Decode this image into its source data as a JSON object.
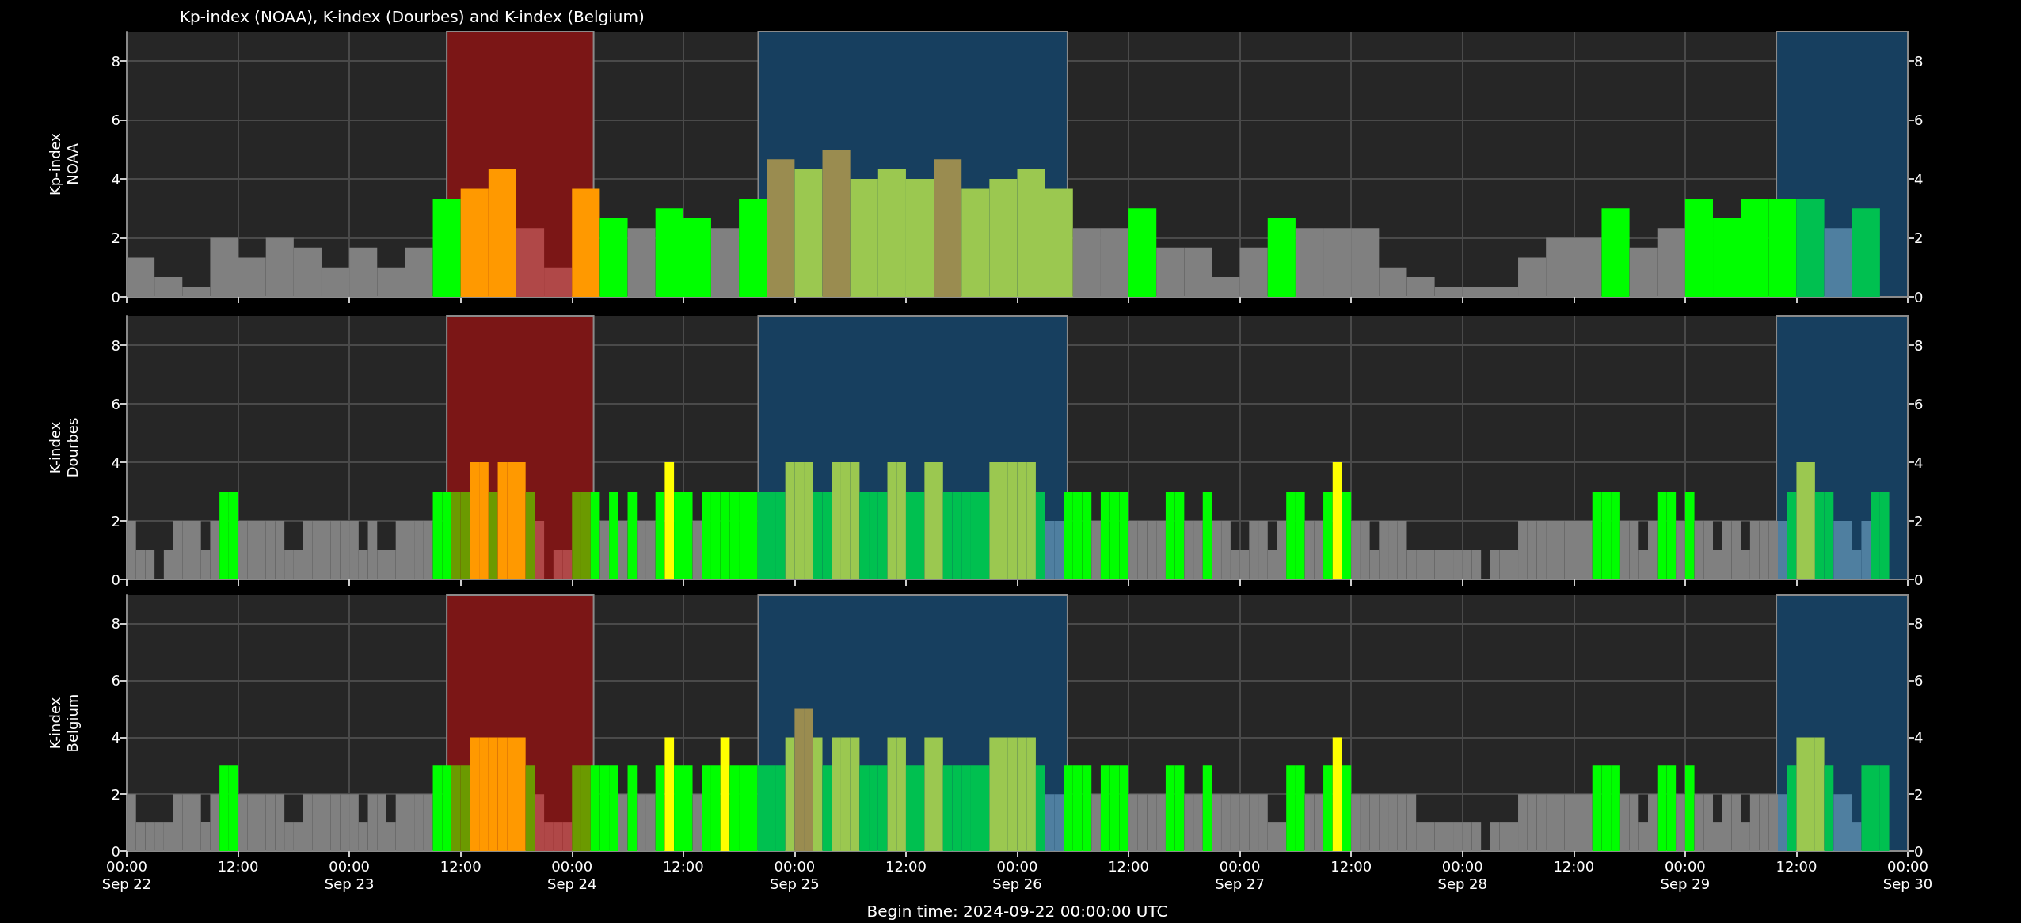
{
  "chart_data": [
    {
      "type": "bar",
      "title": "Kp-index (NOAA), K-index (Dourbes) and K-index (Belgium)",
      "ylabel": "Kp-index\nNOAA",
      "x": [
        "2024-09-22T01:30",
        "2024-09-22T04:30",
        "2024-09-22T07:30",
        "2024-09-22T10:30",
        "2024-09-22T13:30",
        "2024-09-22T16:30",
        "2024-09-22T19:30",
        "2024-09-22T22:30",
        "2024-09-23T01:30",
        "2024-09-23T04:30",
        "2024-09-23T07:30",
        "2024-09-23T10:30",
        "2024-09-23T13:30",
        "2024-09-23T16:30",
        "2024-09-23T19:30",
        "2024-09-23T22:30",
        "2024-09-24T01:30",
        "2024-09-24T04:30",
        "2024-09-24T07:30",
        "2024-09-24T10:30",
        "2024-09-24T13:30",
        "2024-09-24T16:30",
        "2024-09-24T19:30",
        "2024-09-24T22:30",
        "2024-09-25T01:30",
        "2024-09-25T04:30",
        "2024-09-25T07:30",
        "2024-09-25T10:30",
        "2024-09-25T13:30",
        "2024-09-25T16:30",
        "2024-09-25T19:30",
        "2024-09-25T22:30",
        "2024-09-26T01:30",
        "2024-09-26T04:30",
        "2024-09-26T07:30",
        "2024-09-26T10:30",
        "2024-09-26T13:30",
        "2024-09-26T16:30",
        "2024-09-26T19:30",
        "2024-09-26T22:30",
        "2024-09-27T01:30",
        "2024-09-27T04:30",
        "2024-09-27T07:30",
        "2024-09-27T10:30",
        "2024-09-27T13:30",
        "2024-09-27T16:30",
        "2024-09-27T19:30",
        "2024-09-27T22:30",
        "2024-09-28T01:30",
        "2024-09-28T04:30",
        "2024-09-28T07:30",
        "2024-09-28T10:30",
        "2024-09-28T13:30",
        "2024-09-28T16:30",
        "2024-09-28T19:30",
        "2024-09-28T22:30",
        "2024-09-29T01:30",
        "2024-09-29T04:30",
        "2024-09-29T07:30",
        "2024-09-29T10:30",
        "2024-09-29T13:30",
        "2024-09-29T16:30",
        "2024-09-29T19:30"
      ],
      "values": [
        1.33,
        0.67,
        0.33,
        2,
        1.33,
        2,
        1.67,
        1,
        1.67,
        1,
        1.67,
        3.33,
        3.67,
        4.33,
        2.33,
        1,
        3.67,
        2.67,
        2.33,
        3,
        2.67,
        2.33,
        3.33,
        4.67,
        4.33,
        5,
        4,
        4.33,
        4,
        4.67,
        3.67,
        4,
        4.33,
        3.67,
        2.33,
        2.33,
        3,
        1.67,
        1.67,
        0.67,
        1.67,
        2.67,
        2.33,
        2.33,
        2.33,
        1,
        0.67,
        0.33,
        0.33,
        0.33,
        1.33,
        2,
        2,
        3,
        1.67,
        2.33,
        3.33,
        2.67,
        3.33,
        3.33,
        3.33,
        2.33,
        3
      ],
      "colors": [
        "#808080",
        "#808080",
        "#808080",
        "#808080",
        "#808080",
        "#808080",
        "#808080",
        "#808080",
        "#808080",
        "#808080",
        "#808080",
        "#00ff00",
        "#ff9900",
        "#ff9900",
        "#b04848",
        "#b04848",
        "#ff9900",
        "#00ff00",
        "#808080",
        "#00ff00",
        "#00ff00",
        "#808080",
        "#00ff00",
        "#9a8c50",
        "#9bc850",
        "#9a8c50",
        "#9bc850",
        "#9bc850",
        "#9bc850",
        "#9a8c50",
        "#9bc850",
        "#9bc850",
        "#9bc850",
        "#9bc850",
        "#808080",
        "#808080",
        "#00ff00",
        "#808080",
        "#808080",
        "#808080",
        "#808080",
        "#00ff00",
        "#808080",
        "#808080",
        "#808080",
        "#808080",
        "#808080",
        "#808080",
        "#808080",
        "#808080",
        "#808080",
        "#808080",
        "#808080",
        "#00ff00",
        "#808080",
        "#808080",
        "#00ff00",
        "#00ff00",
        "#00ff00",
        "#00ff00",
        "#00c050",
        "#4f7fa0",
        "#00c050"
      ],
      "xlim": [
        "2024-09-22T00:00",
        "2024-09-30T00:00"
      ],
      "xticks": [
        {
          "value": "2024-09-22T00:00",
          "label": null
        },
        {
          "value": "2024-09-22T12:00",
          "label": null
        },
        {
          "value": "2024-09-23T00:00",
          "label": null
        },
        {
          "value": "2024-09-23T12:00",
          "label": null
        },
        {
          "value": "2024-09-24T00:00",
          "label": null
        },
        {
          "value": "2024-09-24T12:00",
          "label": null
        },
        {
          "value": "2024-09-25T00:00",
          "label": null
        },
        {
          "value": "2024-09-25T12:00",
          "label": null
        },
        {
          "value": "2024-09-26T00:00",
          "label": null
        },
        {
          "value": "2024-09-26T12:00",
          "label": null
        },
        {
          "value": "2024-09-27T00:00",
          "label": null
        },
        {
          "value": "2024-09-27T12:00",
          "label": null
        },
        {
          "value": "2024-09-28T00:00",
          "label": null
        },
        {
          "value": "2024-09-28T12:00",
          "label": null
        },
        {
          "value": "2024-09-29T00:00",
          "label": null
        },
        {
          "value": "2024-09-29T12:00",
          "label": null
        },
        {
          "value": "2024-09-30T00:00",
          "label": null
        }
      ],
      "ylim": [
        0,
        9
      ],
      "yticks": [
        0,
        2,
        4,
        6,
        8
      ],
      "y2lim": [
        0,
        9
      ],
      "y2ticks": [
        0,
        2,
        4,
        6,
        8
      ],
      "bands": [
        {
          "axis": "x",
          "from": "2024-09-23T10:30",
          "to": "2024-09-24T02:20",
          "color": "#7b1616"
        },
        {
          "axis": "x",
          "from": "2024-09-24T20:05",
          "to": "2024-09-26T05:25",
          "color": "#173f5f"
        },
        {
          "axis": "x",
          "from": "2024-09-29T09:50",
          "to": "2024-09-30T00:00",
          "color": "#173f5f"
        }
      ],
      "grid": true,
      "tick_labels": "y"
    },
    {
      "type": "bar",
      "ylabel": "K-index\nDourbes",
      "x": [
        "2024-09-22T00:30",
        "2024-09-22T01:30",
        "2024-09-22T02:30",
        "2024-09-22T03:30",
        "2024-09-22T04:30",
        "2024-09-22T05:30",
        "2024-09-22T06:30",
        "2024-09-22T07:30",
        "2024-09-22T08:30",
        "2024-09-22T09:30",
        "2024-09-22T10:30",
        "2024-09-22T11:30",
        "2024-09-22T12:30",
        "2024-09-22T13:30",
        "2024-09-22T14:30",
        "2024-09-22T15:30",
        "2024-09-22T16:30",
        "2024-09-22T17:30",
        "2024-09-22T18:30",
        "2024-09-22T19:30",
        "2024-09-22T20:30",
        "2024-09-22T21:30",
        "2024-09-22T22:30",
        "2024-09-22T23:30",
        "2024-09-23T00:30",
        "2024-09-23T01:30",
        "2024-09-23T02:30",
        "2024-09-23T03:30",
        "2024-09-23T04:30",
        "2024-09-23T05:30",
        "2024-09-23T06:30",
        "2024-09-23T07:30",
        "2024-09-23T08:30",
        "2024-09-23T09:30",
        "2024-09-23T10:30",
        "2024-09-23T11:30",
        "2024-09-23T12:30",
        "2024-09-23T13:30",
        "2024-09-23T14:30",
        "2024-09-23T15:30",
        "2024-09-23T16:30",
        "2024-09-23T17:30",
        "2024-09-23T18:30",
        "2024-09-23T19:30",
        "2024-09-23T20:30",
        "2024-09-23T21:30",
        "2024-09-23T22:30",
        "2024-09-23T23:30",
        "2024-09-24T00:30",
        "2024-09-24T01:30",
        "2024-09-24T02:30",
        "2024-09-24T03:30",
        "2024-09-24T04:30",
        "2024-09-24T05:30",
        "2024-09-24T06:30",
        "2024-09-24T07:30",
        "2024-09-24T08:30",
        "2024-09-24T09:30",
        "2024-09-24T10:30",
        "2024-09-24T11:30",
        "2024-09-24T12:30",
        "2024-09-24T13:30",
        "2024-09-24T14:30",
        "2024-09-24T15:30",
        "2024-09-24T16:30",
        "2024-09-24T17:30",
        "2024-09-24T18:30",
        "2024-09-24T19:30",
        "2024-09-24T20:30",
        "2024-09-24T21:30",
        "2024-09-24T22:30",
        "2024-09-24T23:30",
        "2024-09-25T00:30",
        "2024-09-25T01:30",
        "2024-09-25T02:30",
        "2024-09-25T03:30",
        "2024-09-25T04:30",
        "2024-09-25T05:30",
        "2024-09-25T06:30",
        "2024-09-25T07:30",
        "2024-09-25T08:30",
        "2024-09-25T09:30",
        "2024-09-25T10:30",
        "2024-09-25T11:30",
        "2024-09-25T12:30",
        "2024-09-25T13:30",
        "2024-09-25T14:30",
        "2024-09-25T15:30",
        "2024-09-25T16:30",
        "2024-09-25T17:30",
        "2024-09-25T18:30",
        "2024-09-25T19:30",
        "2024-09-25T20:30",
        "2024-09-25T21:30",
        "2024-09-25T22:30",
        "2024-09-25T23:30",
        "2024-09-26T00:30",
        "2024-09-26T01:30",
        "2024-09-26T02:30",
        "2024-09-26T03:30",
        "2024-09-26T04:30",
        "2024-09-26T05:30",
        "2024-09-26T06:30",
        "2024-09-26T07:30",
        "2024-09-26T08:30",
        "2024-09-26T09:30",
        "2024-09-26T10:30",
        "2024-09-26T11:30",
        "2024-09-26T12:30",
        "2024-09-26T13:30",
        "2024-09-26T14:30",
        "2024-09-26T15:30",
        "2024-09-26T16:30",
        "2024-09-26T17:30",
        "2024-09-26T18:30",
        "2024-09-26T19:30",
        "2024-09-26T20:30",
        "2024-09-26T21:30",
        "2024-09-26T22:30",
        "2024-09-26T23:30",
        "2024-09-27T00:30",
        "2024-09-27T01:30",
        "2024-09-27T02:30",
        "2024-09-27T03:30",
        "2024-09-27T04:30",
        "2024-09-27T05:30",
        "2024-09-27T06:30",
        "2024-09-27T07:30",
        "2024-09-27T08:30",
        "2024-09-27T09:30",
        "2024-09-27T10:30",
        "2024-09-27T11:30",
        "2024-09-27T12:30",
        "2024-09-27T13:30",
        "2024-09-27T14:30",
        "2024-09-27T15:30",
        "2024-09-27T16:30",
        "2024-09-27T17:30",
        "2024-09-27T18:30",
        "2024-09-27T19:30",
        "2024-09-27T20:30",
        "2024-09-27T21:30",
        "2024-09-27T22:30",
        "2024-09-27T23:30",
        "2024-09-28T00:30",
        "2024-09-28T01:30",
        "2024-09-28T02:30",
        "2024-09-28T03:30",
        "2024-09-28T04:30",
        "2024-09-28T05:30",
        "2024-09-28T06:30",
        "2024-09-28T07:30",
        "2024-09-28T08:30",
        "2024-09-28T09:30",
        "2024-09-28T10:30",
        "2024-09-28T11:30",
        "2024-09-28T12:30",
        "2024-09-28T13:30",
        "2024-09-28T14:30",
        "2024-09-28T15:30",
        "2024-09-28T16:30",
        "2024-09-28T17:30",
        "2024-09-28T18:30",
        "2024-09-28T19:30",
        "2024-09-28T20:30",
        "2024-09-28T21:30",
        "2024-09-28T22:30",
        "2024-09-28T23:30",
        "2024-09-29T00:30",
        "2024-09-29T01:30",
        "2024-09-29T02:30",
        "2024-09-29T03:30",
        "2024-09-29T04:30",
        "2024-09-29T05:30",
        "2024-09-29T06:30",
        "2024-09-29T07:30",
        "2024-09-29T08:30",
        "2024-09-29T09:30",
        "2024-09-29T10:30",
        "2024-09-29T11:30",
        "2024-09-29T12:30",
        "2024-09-29T13:30",
        "2024-09-29T14:30",
        "2024-09-29T15:30",
        "2024-09-29T16:30",
        "2024-09-29T17:30",
        "2024-09-29T18:30",
        "2024-09-29T19:30",
        "2024-09-29T20:30",
        "2024-09-29T21:30"
      ],
      "values": [
        2,
        1,
        1,
        0,
        1,
        2,
        2,
        2,
        1,
        2,
        3,
        3,
        2,
        2,
        2,
        2,
        2,
        1,
        1,
        2,
        2,
        2,
        2,
        2,
        2,
        1,
        2,
        1,
        1,
        2,
        2,
        2,
        2,
        3,
        3,
        3,
        3,
        4,
        4,
        3,
        4,
        4,
        4,
        3,
        2,
        0,
        1,
        1,
        3,
        3,
        3,
        2,
        3,
        2,
        3,
        2,
        2,
        3,
        4,
        3,
        3,
        2,
        3,
        3,
        3,
        3,
        3,
        3,
        3,
        3,
        3,
        4,
        4,
        4,
        3,
        3,
        4,
        4,
        4,
        3,
        3,
        3,
        4,
        4,
        3,
        3,
        4,
        4,
        3,
        3,
        3,
        3,
        3,
        4,
        4,
        4,
        4,
        4,
        3,
        2,
        2,
        3,
        3,
        3,
        2,
        3,
        3,
        3,
        2,
        2,
        2,
        2,
        3,
        3,
        2,
        2,
        3,
        2,
        2,
        1,
        1,
        2,
        2,
        1,
        2,
        3,
        3,
        2,
        2,
        3,
        4,
        3,
        2,
        2,
        1,
        2,
        2,
        2,
        1,
        1,
        1,
        1,
        1,
        1,
        1,
        1,
        0,
        1,
        1,
        1,
        2,
        2,
        2,
        2,
        2,
        2,
        2,
        2,
        3,
        3,
        3,
        2,
        2,
        1,
        2,
        3,
        3,
        2,
        3,
        2,
        2,
        1,
        2,
        2,
        1,
        2,
        2,
        2,
        2,
        3,
        4,
        4,
        3,
        3,
        2,
        2,
        1,
        2,
        3,
        3
      ],
      "colors": [
        "#808080",
        "#808080",
        "#808080",
        "#808080",
        "#808080",
        "#808080",
        "#808080",
        "#808080",
        "#808080",
        "#808080",
        "#00ff00",
        "#00ff00",
        "#808080",
        "#808080",
        "#808080",
        "#808080",
        "#808080",
        "#808080",
        "#808080",
        "#808080",
        "#808080",
        "#808080",
        "#808080",
        "#808080",
        "#808080",
        "#808080",
        "#808080",
        "#808080",
        "#808080",
        "#808080",
        "#808080",
        "#808080",
        "#808080",
        "#00ff00",
        "#00ff00",
        "#6b9a00",
        "#6b9a00",
        "#ff9900",
        "#ff9900",
        "#6b9a00",
        "#ff9900",
        "#ff9900",
        "#ff9900",
        "#6b9a00",
        "#b04848",
        "#b04848",
        "#b04848",
        "#b04848",
        "#6b9a00",
        "#6b9a00",
        "#00ff00",
        "#808080",
        "#00ff00",
        "#808080",
        "#00ff00",
        "#808080",
        "#808080",
        "#00ff00",
        "#ffff00",
        "#00ff00",
        "#00ff00",
        "#808080",
        "#00ff00",
        "#00ff00",
        "#00ff00",
        "#00ff00",
        "#00ff00",
        "#00ff00",
        "#00c050",
        "#00c050",
        "#00c050",
        "#9bc850",
        "#9bc850",
        "#9bc850",
        "#00c050",
        "#00c050",
        "#9bc850",
        "#9bc850",
        "#9bc850",
        "#00c050",
        "#00c050",
        "#00c050",
        "#9bc850",
        "#9bc850",
        "#00c050",
        "#00c050",
        "#9bc850",
        "#9bc850",
        "#00c050",
        "#00c050",
        "#00c050",
        "#00c050",
        "#00c050",
        "#9bc850",
        "#9bc850",
        "#9bc850",
        "#9bc850",
        "#9bc850",
        "#00c050",
        "#4f7fa0",
        "#4f7fa0",
        "#00ff00",
        "#00ff00",
        "#00ff00",
        "#808080",
        "#00ff00",
        "#00ff00",
        "#00ff00",
        "#808080",
        "#808080",
        "#808080",
        "#808080",
        "#00ff00",
        "#00ff00",
        "#808080",
        "#808080",
        "#00ff00",
        "#808080",
        "#808080",
        "#808080",
        "#808080",
        "#808080",
        "#808080",
        "#808080",
        "#808080",
        "#00ff00",
        "#00ff00",
        "#808080",
        "#808080",
        "#00ff00",
        "#ffff00",
        "#00ff00",
        "#808080",
        "#808080",
        "#808080",
        "#808080",
        "#808080",
        "#808080",
        "#808080",
        "#808080",
        "#808080",
        "#808080",
        "#808080",
        "#808080",
        "#808080",
        "#808080",
        "#808080",
        "#808080",
        "#808080",
        "#808080",
        "#808080",
        "#808080",
        "#808080",
        "#808080",
        "#808080",
        "#808080",
        "#808080",
        "#808080",
        "#00ff00",
        "#00ff00",
        "#00ff00",
        "#808080",
        "#808080",
        "#808080",
        "#808080",
        "#00ff00",
        "#00ff00",
        "#808080",
        "#00ff00",
        "#808080",
        "#808080",
        "#808080",
        "#808080",
        "#808080",
        "#808080",
        "#808080",
        "#808080",
        "#808080",
        "#4f7fa0",
        "#00c050",
        "#9bc850",
        "#9bc850",
        "#00c050",
        "#00c050",
        "#4f7fa0",
        "#4f7fa0",
        "#4f7fa0",
        "#4f7fa0",
        "#00c050",
        "#00c050"
      ],
      "xlim": [
        "2024-09-22T00:00",
        "2024-09-30T00:00"
      ],
      "xticks": [
        {
          "value": "2024-09-22T00:00",
          "label": null
        },
        {
          "value": "2024-09-22T12:00",
          "label": null
        },
        {
          "value": "2024-09-23T00:00",
          "label": null
        },
        {
          "value": "2024-09-23T12:00",
          "label": null
        },
        {
          "value": "2024-09-24T00:00",
          "label": null
        },
        {
          "value": "2024-09-24T12:00",
          "label": null
        },
        {
          "value": "2024-09-25T00:00",
          "label": null
        },
        {
          "value": "2024-09-25T12:00",
          "label": null
        },
        {
          "value": "2024-09-26T00:00",
          "label": null
        },
        {
          "value": "2024-09-26T12:00",
          "label": null
        },
        {
          "value": "2024-09-27T00:00",
          "label": null
        },
        {
          "value": "2024-09-27T12:00",
          "label": null
        },
        {
          "value": "2024-09-28T00:00",
          "label": null
        },
        {
          "value": "2024-09-28T12:00",
          "label": null
        },
        {
          "value": "2024-09-29T00:00",
          "label": null
        },
        {
          "value": "2024-09-29T12:00",
          "label": null
        },
        {
          "value": "2024-09-30T00:00",
          "label": null
        }
      ],
      "ylim": [
        0,
        9
      ],
      "yticks": [
        0,
        2,
        4,
        6,
        8
      ],
      "y2lim": [
        0,
        9
      ],
      "y2ticks": [
        0,
        2,
        4,
        6,
        8
      ],
      "bands": [
        {
          "axis": "x",
          "from": "2024-09-23T10:30",
          "to": "2024-09-24T02:20",
          "color": "#7b1616"
        },
        {
          "axis": "x",
          "from": "2024-09-24T20:05",
          "to": "2024-09-26T05:25",
          "color": "#173f5f"
        },
        {
          "axis": "x",
          "from": "2024-09-29T09:50",
          "to": "2024-09-30T00:00",
          "color": "#173f5f"
        }
      ],
      "grid": true,
      "tick_labels": "y"
    },
    {
      "type": "bar",
      "ylabel": "K-index\nBelgium",
      "xlabel": "Begin time: 2024-09-22 00:00:00 UTC",
      "x": [
        "2024-09-22T00:30",
        "2024-09-22T01:30",
        "2024-09-22T02:30",
        "2024-09-22T03:30",
        "2024-09-22T04:30",
        "2024-09-22T05:30",
        "2024-09-22T06:30",
        "2024-09-22T07:30",
        "2024-09-22T08:30",
        "2024-09-22T09:30",
        "2024-09-22T10:30",
        "2024-09-22T11:30",
        "2024-09-22T12:30",
        "2024-09-22T13:30",
        "2024-09-22T14:30",
        "2024-09-22T15:30",
        "2024-09-22T16:30",
        "2024-09-22T17:30",
        "2024-09-22T18:30",
        "2024-09-22T19:30",
        "2024-09-22T20:30",
        "2024-09-22T21:30",
        "2024-09-22T22:30",
        "2024-09-22T23:30",
        "2024-09-23T00:30",
        "2024-09-23T01:30",
        "2024-09-23T02:30",
        "2024-09-23T03:30",
        "2024-09-23T04:30",
        "2024-09-23T05:30",
        "2024-09-23T06:30",
        "2024-09-23T07:30",
        "2024-09-23T08:30",
        "2024-09-23T09:30",
        "2024-09-23T10:30",
        "2024-09-23T11:30",
        "2024-09-23T12:30",
        "2024-09-23T13:30",
        "2024-09-23T14:30",
        "2024-09-23T15:30",
        "2024-09-23T16:30",
        "2024-09-23T17:30",
        "2024-09-23T18:30",
        "2024-09-23T19:30",
        "2024-09-23T20:30",
        "2024-09-23T21:30",
        "2024-09-23T22:30",
        "2024-09-23T23:30",
        "2024-09-24T00:30",
        "2024-09-24T01:30",
        "2024-09-24T02:30",
        "2024-09-24T03:30",
        "2024-09-24T04:30",
        "2024-09-24T05:30",
        "2024-09-24T06:30",
        "2024-09-24T07:30",
        "2024-09-24T08:30",
        "2024-09-24T09:30",
        "2024-09-24T10:30",
        "2024-09-24T11:30",
        "2024-09-24T12:30",
        "2024-09-24T13:30",
        "2024-09-24T14:30",
        "2024-09-24T15:30",
        "2024-09-24T16:30",
        "2024-09-24T17:30",
        "2024-09-24T18:30",
        "2024-09-24T19:30",
        "2024-09-24T20:30",
        "2024-09-24T21:30",
        "2024-09-24T22:30",
        "2024-09-24T23:30",
        "2024-09-25T00:30",
        "2024-09-25T01:30",
        "2024-09-25T02:30",
        "2024-09-25T03:30",
        "2024-09-25T04:30",
        "2024-09-25T05:30",
        "2024-09-25T06:30",
        "2024-09-25T07:30",
        "2024-09-25T08:30",
        "2024-09-25T09:30",
        "2024-09-25T10:30",
        "2024-09-25T11:30",
        "2024-09-25T12:30",
        "2024-09-25T13:30",
        "2024-09-25T14:30",
        "2024-09-25T15:30",
        "2024-09-25T16:30",
        "2024-09-25T17:30",
        "2024-09-25T18:30",
        "2024-09-25T19:30",
        "2024-09-25T20:30",
        "2024-09-25T21:30",
        "2024-09-25T22:30",
        "2024-09-25T23:30",
        "2024-09-26T00:30",
        "2024-09-26T01:30",
        "2024-09-26T02:30",
        "2024-09-26T03:30",
        "2024-09-26T04:30",
        "2024-09-26T05:30",
        "2024-09-26T06:30",
        "2024-09-26T07:30",
        "2024-09-26T08:30",
        "2024-09-26T09:30",
        "2024-09-26T10:30",
        "2024-09-26T11:30",
        "2024-09-26T12:30",
        "2024-09-26T13:30",
        "2024-09-26T14:30",
        "2024-09-26T15:30",
        "2024-09-26T16:30",
        "2024-09-26T17:30",
        "2024-09-26T18:30",
        "2024-09-26T19:30",
        "2024-09-26T20:30",
        "2024-09-26T21:30",
        "2024-09-26T22:30",
        "2024-09-26T23:30",
        "2024-09-27T00:30",
        "2024-09-27T01:30",
        "2024-09-27T02:30",
        "2024-09-27T03:30",
        "2024-09-27T04:30",
        "2024-09-27T05:30",
        "2024-09-27T06:30",
        "2024-09-27T07:30",
        "2024-09-27T08:30",
        "2024-09-27T09:30",
        "2024-09-27T10:30",
        "2024-09-27T11:30",
        "2024-09-27T12:30",
        "2024-09-27T13:30",
        "2024-09-27T14:30",
        "2024-09-27T15:30",
        "2024-09-27T16:30",
        "2024-09-27T17:30",
        "2024-09-27T18:30",
        "2024-09-27T19:30",
        "2024-09-27T20:30",
        "2024-09-27T21:30",
        "2024-09-27T22:30",
        "2024-09-27T23:30",
        "2024-09-28T00:30",
        "2024-09-28T01:30",
        "2024-09-28T02:30",
        "2024-09-28T03:30",
        "2024-09-28T04:30",
        "2024-09-28T05:30",
        "2024-09-28T06:30",
        "2024-09-28T07:30",
        "2024-09-28T08:30",
        "2024-09-28T09:30",
        "2024-09-28T10:30",
        "2024-09-28T11:30",
        "2024-09-28T12:30",
        "2024-09-28T13:30",
        "2024-09-28T14:30",
        "2024-09-28T15:30",
        "2024-09-28T16:30",
        "2024-09-28T17:30",
        "2024-09-28T18:30",
        "2024-09-28T19:30",
        "2024-09-28T20:30",
        "2024-09-28T21:30",
        "2024-09-28T22:30",
        "2024-09-28T23:30",
        "2024-09-29T00:30",
        "2024-09-29T01:30",
        "2024-09-29T02:30",
        "2024-09-29T03:30",
        "2024-09-29T04:30",
        "2024-09-29T05:30",
        "2024-09-29T06:30",
        "2024-09-29T07:30",
        "2024-09-29T08:30",
        "2024-09-29T09:30",
        "2024-09-29T10:30",
        "2024-09-29T11:30",
        "2024-09-29T12:30",
        "2024-09-29T13:30",
        "2024-09-29T14:30",
        "2024-09-29T15:30",
        "2024-09-29T16:30",
        "2024-09-29T17:30",
        "2024-09-29T18:30",
        "2024-09-29T19:30",
        "2024-09-29T20:30",
        "2024-09-29T21:30"
      ],
      "values": [
        2,
        1,
        1,
        1,
        1,
        2,
        2,
        2,
        1,
        2,
        3,
        3,
        2,
        2,
        2,
        2,
        2,
        1,
        1,
        2,
        2,
        2,
        2,
        2,
        2,
        1,
        2,
        2,
        1,
        2,
        2,
        2,
        2,
        3,
        3,
        3,
        3,
        4,
        4,
        4,
        4,
        4,
        4,
        3,
        2,
        1,
        1,
        1,
        3,
        3,
        3,
        3,
        3,
        2,
        3,
        2,
        2,
        3,
        4,
        3,
        3,
        2,
        3,
        3,
        4,
        3,
        3,
        3,
        3,
        3,
        3,
        4,
        5,
        5,
        4,
        3,
        4,
        4,
        4,
        3,
        3,
        3,
        4,
        4,
        3,
        3,
        4,
        4,
        3,
        3,
        3,
        3,
        3,
        4,
        4,
        4,
        4,
        4,
        3,
        2,
        2,
        3,
        3,
        3,
        2,
        3,
        3,
        3,
        2,
        2,
        2,
        2,
        3,
        3,
        2,
        2,
        3,
        2,
        2,
        2,
        2,
        2,
        2,
        1,
        1,
        3,
        3,
        2,
        2,
        3,
        4,
        3,
        2,
        2,
        2,
        2,
        2,
        2,
        2,
        1,
        1,
        1,
        1,
        1,
        1,
        1,
        0,
        1,
        1,
        1,
        2,
        2,
        2,
        2,
        2,
        2,
        2,
        2,
        3,
        3,
        3,
        2,
        2,
        1,
        2,
        3,
        3,
        2,
        3,
        2,
        2,
        1,
        2,
        2,
        1,
        2,
        2,
        2,
        2,
        3,
        4,
        4,
        4,
        3,
        2,
        2,
        1,
        3,
        3,
        3
      ],
      "colors": [
        "#808080",
        "#808080",
        "#808080",
        "#808080",
        "#808080",
        "#808080",
        "#808080",
        "#808080",
        "#808080",
        "#808080",
        "#00ff00",
        "#00ff00",
        "#808080",
        "#808080",
        "#808080",
        "#808080",
        "#808080",
        "#808080",
        "#808080",
        "#808080",
        "#808080",
        "#808080",
        "#808080",
        "#808080",
        "#808080",
        "#808080",
        "#808080",
        "#808080",
        "#808080",
        "#808080",
        "#808080",
        "#808080",
        "#808080",
        "#00ff00",
        "#00ff00",
        "#6b9a00",
        "#6b9a00",
        "#ff9900",
        "#ff9900",
        "#ff9900",
        "#ff9900",
        "#ff9900",
        "#ff9900",
        "#6b9a00",
        "#b04848",
        "#b04848",
        "#b04848",
        "#b04848",
        "#6b9a00",
        "#6b9a00",
        "#00ff00",
        "#00ff00",
        "#00ff00",
        "#808080",
        "#00ff00",
        "#808080",
        "#808080",
        "#00ff00",
        "#ffff00",
        "#00ff00",
        "#00ff00",
        "#808080",
        "#00ff00",
        "#00ff00",
        "#ffff00",
        "#00ff00",
        "#00ff00",
        "#00ff00",
        "#00c050",
        "#00c050",
        "#00c050",
        "#9bc850",
        "#9a8c50",
        "#9a8c50",
        "#9bc850",
        "#00c050",
        "#9bc850",
        "#9bc850",
        "#9bc850",
        "#00c050",
        "#00c050",
        "#00c050",
        "#9bc850",
        "#9bc850",
        "#00c050",
        "#00c050",
        "#9bc850",
        "#9bc850",
        "#00c050",
        "#00c050",
        "#00c050",
        "#00c050",
        "#00c050",
        "#9bc850",
        "#9bc850",
        "#9bc850",
        "#9bc850",
        "#9bc850",
        "#00c050",
        "#4f7fa0",
        "#4f7fa0",
        "#00ff00",
        "#00ff00",
        "#00ff00",
        "#808080",
        "#00ff00",
        "#00ff00",
        "#00ff00",
        "#808080",
        "#808080",
        "#808080",
        "#808080",
        "#00ff00",
        "#00ff00",
        "#808080",
        "#808080",
        "#00ff00",
        "#808080",
        "#808080",
        "#808080",
        "#808080",
        "#808080",
        "#808080",
        "#808080",
        "#808080",
        "#00ff00",
        "#00ff00",
        "#808080",
        "#808080",
        "#00ff00",
        "#ffff00",
        "#00ff00",
        "#808080",
        "#808080",
        "#808080",
        "#808080",
        "#808080",
        "#808080",
        "#808080",
        "#808080",
        "#808080",
        "#808080",
        "#808080",
        "#808080",
        "#808080",
        "#808080",
        "#808080",
        "#808080",
        "#808080",
        "#808080",
        "#808080",
        "#808080",
        "#808080",
        "#808080",
        "#808080",
        "#808080",
        "#808080",
        "#808080",
        "#00ff00",
        "#00ff00",
        "#00ff00",
        "#808080",
        "#808080",
        "#808080",
        "#808080",
        "#00ff00",
        "#00ff00",
        "#808080",
        "#00ff00",
        "#808080",
        "#808080",
        "#808080",
        "#808080",
        "#808080",
        "#808080",
        "#808080",
        "#808080",
        "#808080",
        "#4f7fa0",
        "#00c050",
        "#9bc850",
        "#9bc850",
        "#9bc850",
        "#00c050",
        "#4f7fa0",
        "#4f7fa0",
        "#4f7fa0",
        "#00c050",
        "#00c050",
        "#00c050"
      ],
      "xlim": [
        "2024-09-22T00:00",
        "2024-09-30T00:00"
      ],
      "xticks": [
        {
          "value": "2024-09-22T00:00",
          "label": "00:00\nSep 22"
        },
        {
          "value": "2024-09-22T12:00",
          "label": "12:00"
        },
        {
          "value": "2024-09-23T00:00",
          "label": "00:00\nSep 23"
        },
        {
          "value": "2024-09-23T12:00",
          "label": "12:00"
        },
        {
          "value": "2024-09-24T00:00",
          "label": "00:00\nSep 24"
        },
        {
          "value": "2024-09-24T12:00",
          "label": "12:00"
        },
        {
          "value": "2024-09-25T00:00",
          "label": "00:00\nSep 25"
        },
        {
          "value": "2024-09-25T12:00",
          "label": "12:00"
        },
        {
          "value": "2024-09-26T00:00",
          "label": "00:00\nSep 26"
        },
        {
          "value": "2024-09-26T12:00",
          "label": "12:00"
        },
        {
          "value": "2024-09-27T00:00",
          "label": "00:00\nSep 27"
        },
        {
          "value": "2024-09-27T12:00",
          "label": "12:00"
        },
        {
          "value": "2024-09-28T00:00",
          "label": "00:00\nSep 28"
        },
        {
          "value": "2024-09-28T12:00",
          "label": "12:00"
        },
        {
          "value": "2024-09-29T00:00",
          "label": "00:00\nSep 29"
        },
        {
          "value": "2024-09-29T12:00",
          "label": "12:00"
        },
        {
          "value": "2024-09-30T00:00",
          "label": "00:00\nSep 30"
        }
      ],
      "ylim": [
        0,
        9
      ],
      "yticks": [
        0,
        2,
        4,
        6,
        8
      ],
      "y2lim": [
        0,
        9
      ],
      "y2ticks": [
        0,
        2,
        4,
        6,
        8
      ],
      "bands": [
        {
          "axis": "x",
          "from": "2024-09-23T10:30",
          "to": "2024-09-24T02:20",
          "color": "#7b1616"
        },
        {
          "axis": "x",
          "from": "2024-09-24T20:05",
          "to": "2024-09-26T05:25",
          "color": "#173f5f"
        },
        {
          "axis": "x",
          "from": "2024-09-29T09:50",
          "to": "2024-09-30T00:00",
          "color": "#173f5f"
        }
      ],
      "grid": true
    }
  ]
}
